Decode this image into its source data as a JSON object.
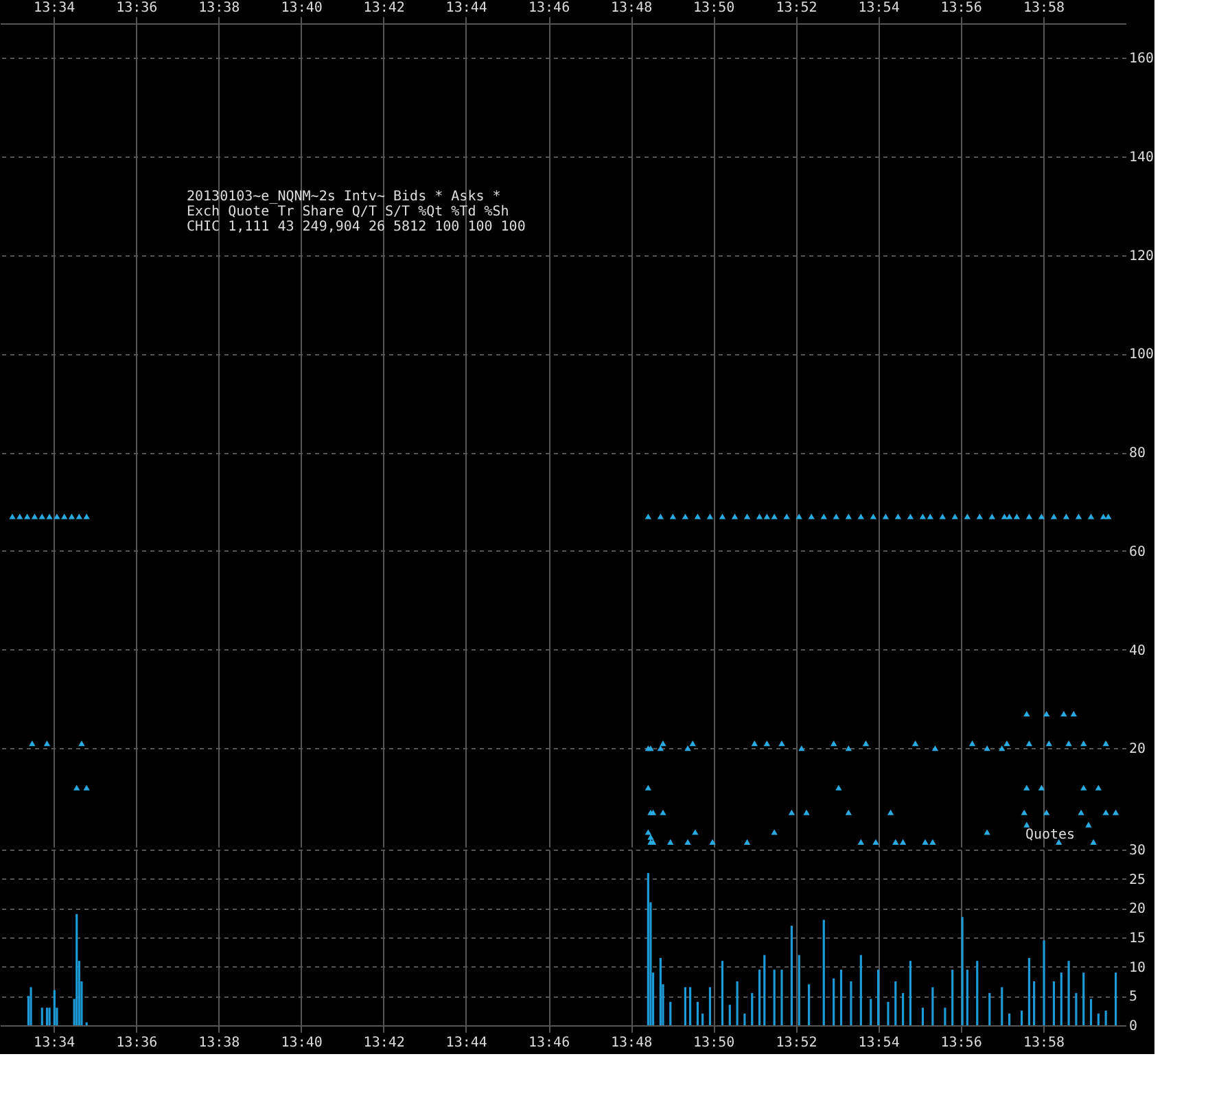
{
  "chart_data": [
    {
      "type": "scatter",
      "marker": "triangle",
      "grid": true,
      "xlim": [
        13.545,
        14.0
      ],
      "xticks": [
        {
          "value": 13.5667,
          "label": "13:34"
        },
        {
          "value": 13.6,
          "label": "13:36"
        },
        {
          "value": 13.6333,
          "label": "13:38"
        },
        {
          "value": 13.6667,
          "label": "13:40"
        },
        {
          "value": 13.7,
          "label": "13:42"
        },
        {
          "value": 13.7333,
          "label": "13:44"
        },
        {
          "value": 13.7667,
          "label": "13:46"
        },
        {
          "value": 13.8,
          "label": "13:48"
        },
        {
          "value": 13.8333,
          "label": "13:50"
        },
        {
          "value": 13.8667,
          "label": "13:52"
        },
        {
          "value": 13.9,
          "label": "13:54"
        },
        {
          "value": 13.9333,
          "label": "13:56"
        },
        {
          "value": 13.9667,
          "label": "13:58"
        }
      ],
      "ylim": [
        0,
        167
      ],
      "yticks": [
        20,
        40,
        60,
        80,
        100,
        120,
        140,
        160
      ],
      "annotations": [
        "20130103~e_NQNM~2s Intv~ Bids * Asks *",
        "Exch Quote Tr   Share  Q/T   S/T  %Qt %Td %Sh",
        "CHIC 1,111 43 249,904    26  5812 100 100 100",
        "Quotes"
      ],
      "series": [
        {
          "color": "#29abe2",
          "x": [
            13.55,
            13.553,
            13.556,
            13.559,
            13.562,
            13.565,
            13.568,
            13.571,
            13.574,
            13.577,
            13.58,
            13.807,
            13.812,
            13.817,
            13.822,
            13.827,
            13.832,
            13.837,
            13.842,
            13.847,
            13.852,
            13.855,
            13.858,
            13.863,
            13.868,
            13.873,
            13.878,
            13.883,
            13.888,
            13.893,
            13.898,
            13.903,
            13.908,
            13.913,
            13.918,
            13.921,
            13.926,
            13.931,
            13.936,
            13.941,
            13.946,
            13.951,
            13.953,
            13.956,
            13.961,
            13.966,
            13.971,
            13.976,
            13.981,
            13.986,
            13.991,
            13.993
          ],
          "values": [
            67,
            67,
            67,
            67,
            67,
            67,
            67,
            67,
            67,
            67,
            67,
            67,
            67,
            67,
            67,
            67,
            67,
            67,
            67,
            67,
            67,
            67,
            67,
            67,
            67,
            67,
            67,
            67,
            67,
            67,
            67,
            67,
            67,
            67,
            67,
            67,
            67,
            67,
            67,
            67,
            67,
            67,
            67,
            67,
            67,
            67,
            67,
            67,
            67,
            67,
            67,
            67
          ]
        },
        {
          "color": "#29abe2",
          "x": [
            13.558,
            13.564,
            13.578,
            13.576,
            13.58,
            13.807,
            13.808,
            13.812,
            13.813,
            13.823,
            13.825,
            13.807,
            13.808,
            13.809,
            13.813,
            13.807,
            13.808,
            13.808,
            13.809,
            13.816,
            13.823,
            13.826,
            13.833,
            13.847,
            13.85,
            13.855,
            13.861,
            13.869,
            13.882,
            13.888,
            13.895,
            13.884,
            13.865,
            13.871,
            13.888,
            13.858,
            13.893,
            13.899,
            13.905,
            13.907,
            13.91,
            13.915,
            13.923,
            13.919,
            13.922,
            13.938,
            13.944,
            13.95,
            13.952,
            13.944,
            13.96,
            13.968,
            13.975,
            13.979,
            13.961,
            13.969,
            13.977,
            13.983,
            13.992,
            13.96,
            13.966,
            13.983,
            13.989,
            13.959,
            13.968,
            13.982,
            13.992,
            13.996,
            13.96,
            13.985,
            13.973,
            13.987
          ],
          "values": [
            21,
            21,
            21,
            12,
            12,
            20,
            20,
            20,
            21,
            20,
            21,
            12,
            7,
            7,
            7,
            3,
            2,
            1,
            1,
            1,
            1,
            3,
            1,
            1,
            21,
            21,
            21,
            20,
            21,
            20,
            21,
            12,
            7,
            7,
            7,
            3,
            1,
            1,
            7,
            1,
            1,
            21,
            20,
            1,
            1,
            21,
            20,
            20,
            21,
            3,
            27,
            27,
            27,
            27,
            21,
            21,
            21,
            21,
            21,
            12,
            12,
            12,
            12,
            7,
            7,
            7,
            7,
            7,
            4.5,
            4.5,
            1,
            1
          ]
        }
      ]
    },
    {
      "type": "bar",
      "grid": true,
      "xlim": [
        13.545,
        14.0
      ],
      "xticks": [
        {
          "value": 13.5667,
          "label": "13:34"
        },
        {
          "value": 13.6,
          "label": "13:36"
        },
        {
          "value": 13.6333,
          "label": "13:38"
        },
        {
          "value": 13.6667,
          "label": "13:40"
        },
        {
          "value": 13.7,
          "label": "13:42"
        },
        {
          "value": 13.7333,
          "label": "13:44"
        },
        {
          "value": 13.7667,
          "label": "13:46"
        },
        {
          "value": 13.8,
          "label": "13:48"
        },
        {
          "value": 13.8333,
          "label": "13:50"
        },
        {
          "value": 13.8667,
          "label": "13:52"
        },
        {
          "value": 13.9,
          "label": "13:54"
        },
        {
          "value": 13.9333,
          "label": "13:56"
        },
        {
          "value": 13.9667,
          "label": "13:58"
        }
      ],
      "ylim": [
        0,
        30
      ],
      "yticks": [
        0,
        5,
        10,
        15,
        20,
        25,
        30
      ],
      "series": [
        {
          "color": "#1e9ad6",
          "x": [
            13.5565,
            13.5575,
            13.562,
            13.564,
            13.565,
            13.567,
            13.568,
            13.575,
            13.576,
            13.577,
            13.578,
            13.58,
            13.807,
            13.808,
            13.809,
            13.812,
            13.813,
            13.816,
            13.822,
            13.824,
            13.827,
            13.829,
            13.832,
            13.837,
            13.84,
            13.843,
            13.846,
            13.849,
            13.852,
            13.854,
            13.858,
            13.861,
            13.865,
            13.868,
            13.872,
            13.878,
            13.882,
            13.885,
            13.889,
            13.893,
            13.897,
            13.9,
            13.904,
            13.907,
            13.91,
            13.913,
            13.918,
            13.922,
            13.927,
            13.93,
            13.934,
            13.936,
            13.94,
            13.945,
            13.95,
            13.953,
            13.958,
            13.961,
            13.963,
            13.967,
            13.971,
            13.974,
            13.977,
            13.98,
            13.983,
            13.986,
            13.989,
            13.992,
            13.996
          ],
          "values": [
            5,
            6.5,
            3,
            3,
            3,
            6,
            3,
            4.5,
            19,
            11,
            7.5,
            0.5,
            26,
            21,
            9,
            11.5,
            7,
            4,
            6.5,
            6.5,
            4,
            2,
            6.5,
            11,
            3.5,
            7.5,
            2,
            5.5,
            9.5,
            12,
            9.5,
            9.5,
            17,
            12,
            7,
            18,
            8,
            9.5,
            7.5,
            12,
            4.5,
            9.5,
            4,
            7.5,
            5.5,
            11,
            3,
            6.5,
            3,
            9.5,
            18.5,
            9.5,
            11,
            5.5,
            6.5,
            2,
            2.5,
            11.5,
            7.5,
            14.5,
            7.5,
            9,
            11,
            5.5,
            9,
            4.5,
            2,
            2.5,
            9
          ]
        }
      ]
    }
  ]
}
